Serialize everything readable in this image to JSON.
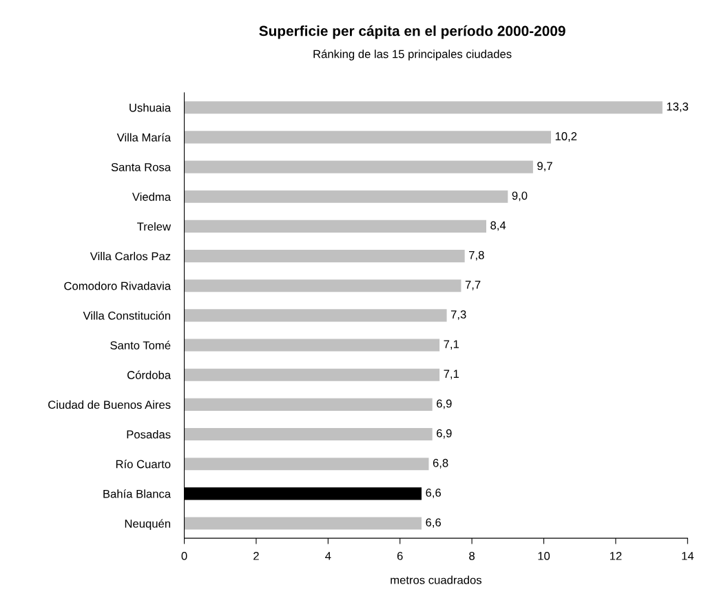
{
  "chart_data": {
    "type": "bar",
    "orientation": "horizontal",
    "title": "Superficie per cápita en el período 2000-2009",
    "subtitle": "Ránking de las 15 principales ciudades",
    "xlabel": "metros cuadrados",
    "categories": [
      "Ushuaia",
      "Villa María",
      "Santa Rosa",
      "Viedma",
      "Trelew",
      "Villa Carlos Paz",
      "Comodoro Rivadavia",
      "Villa Constitución",
      "Santo Tomé",
      "Córdoba",
      "Ciudad de Buenos Aires",
      "Posadas",
      "Río Cuarto",
      "Bahía Blanca",
      "Neuquén"
    ],
    "values": [
      13.3,
      10.2,
      9.7,
      9.0,
      8.4,
      7.8,
      7.7,
      7.3,
      7.1,
      7.1,
      6.9,
      6.9,
      6.8,
      6.6,
      6.6
    ],
    "value_labels": [
      "13,3",
      "10,2",
      "9,7",
      "9,0",
      "8,4",
      "7,8",
      "7,7",
      "7,3",
      "7,1",
      "7,1",
      "6,9",
      "6,9",
      "6,8",
      "6,6",
      "6,6"
    ],
    "colors": [
      "#c0c0c0",
      "#c0c0c0",
      "#c0c0c0",
      "#c0c0c0",
      "#c0c0c0",
      "#c0c0c0",
      "#c0c0c0",
      "#c0c0c0",
      "#c0c0c0",
      "#c0c0c0",
      "#c0c0c0",
      "#c0c0c0",
      "#c0c0c0",
      "#000000",
      "#c0c0c0"
    ],
    "xlim": [
      0,
      14
    ],
    "xticks": [
      0,
      2,
      4,
      6,
      8,
      10,
      12,
      14
    ],
    "grid": false,
    "legend": false
  }
}
